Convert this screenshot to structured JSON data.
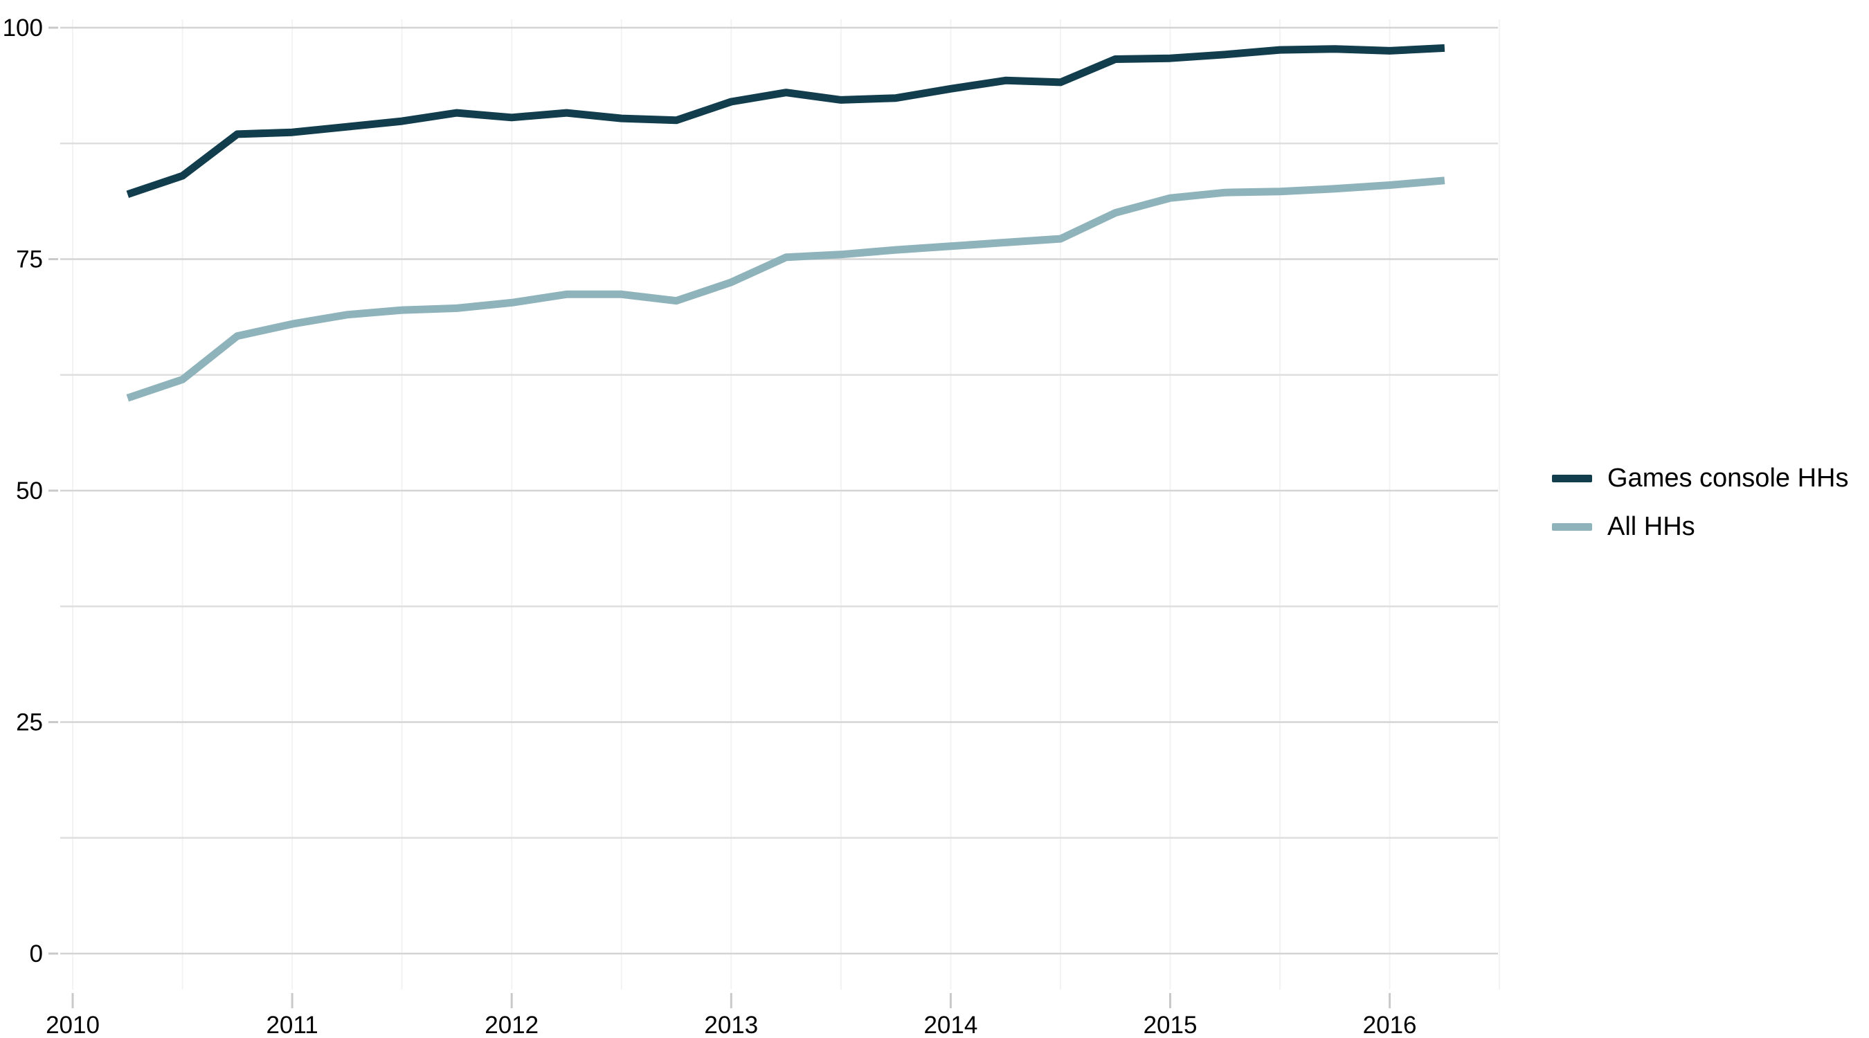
{
  "chart_data": {
    "type": "line",
    "title": "",
    "xlabel": "",
    "ylabel": "",
    "ylim": [
      0,
      100
    ],
    "y_major_ticks": [
      0,
      25,
      50,
      75,
      100
    ],
    "y_minor_step": 12.5,
    "x_years": [
      2010,
      2011,
      2012,
      2013,
      2014,
      2015,
      2016
    ],
    "x_tick_labels": [
      "2010",
      "2011",
      "2012",
      "2013",
      "2014",
      "2015",
      "2016"
    ],
    "x_start": 2010.25,
    "x_step": 0.25,
    "grid": "horizontal lines every 12.5 units; faint vertical lines every half year",
    "legend_position": "right",
    "quarters": [
      "2010 Q2",
      "2010 Q3",
      "2010 Q4",
      "2011 Q1",
      "2011 Q2",
      "2011 Q3",
      "2011 Q4",
      "2012 Q1",
      "2012 Q2",
      "2012 Q3",
      "2012 Q4",
      "2013 Q1",
      "2013 Q2",
      "2013 Q3",
      "2013 Q4",
      "2014 Q1",
      "2014 Q2",
      "2014 Q3",
      "2014 Q4",
      "2015 Q1",
      "2015 Q2",
      "2015 Q3",
      "2015 Q4",
      "2016 Q1",
      "2016 Q2"
    ],
    "series": [
      {
        "name": "Games console HHs",
        "color": "#113d4d",
        "values": [
          82.0,
          84.0,
          88.5,
          88.7,
          89.3,
          89.9,
          90.8,
          90.3,
          90.8,
          90.2,
          90.0,
          92.0,
          93.0,
          92.2,
          92.4,
          93.4,
          94.3,
          94.1,
          96.6,
          96.7,
          97.1,
          97.6,
          97.7,
          97.5,
          97.8
        ]
      },
      {
        "name": "All HHs",
        "color": "#8fb3ba",
        "values": [
          60.0,
          62.0,
          66.7,
          68.0,
          69.0,
          69.5,
          69.7,
          70.3,
          71.2,
          71.2,
          70.5,
          72.5,
          75.2,
          75.5,
          76.0,
          76.4,
          76.8,
          77.2,
          80.0,
          81.6,
          82.2,
          82.3,
          82.6,
          83.0,
          83.5
        ]
      }
    ],
    "colors": {
      "grid_major": "#d4d4d4",
      "grid_minor": "#dedede",
      "grid_vertical": "#f3f3f3",
      "tick": "#c9c9c9",
      "axis_text": "#000000",
      "background": "#ffffff"
    }
  },
  "legend": {
    "items": [
      {
        "label": "Games console HHs"
      },
      {
        "label": "All HHs"
      }
    ]
  }
}
